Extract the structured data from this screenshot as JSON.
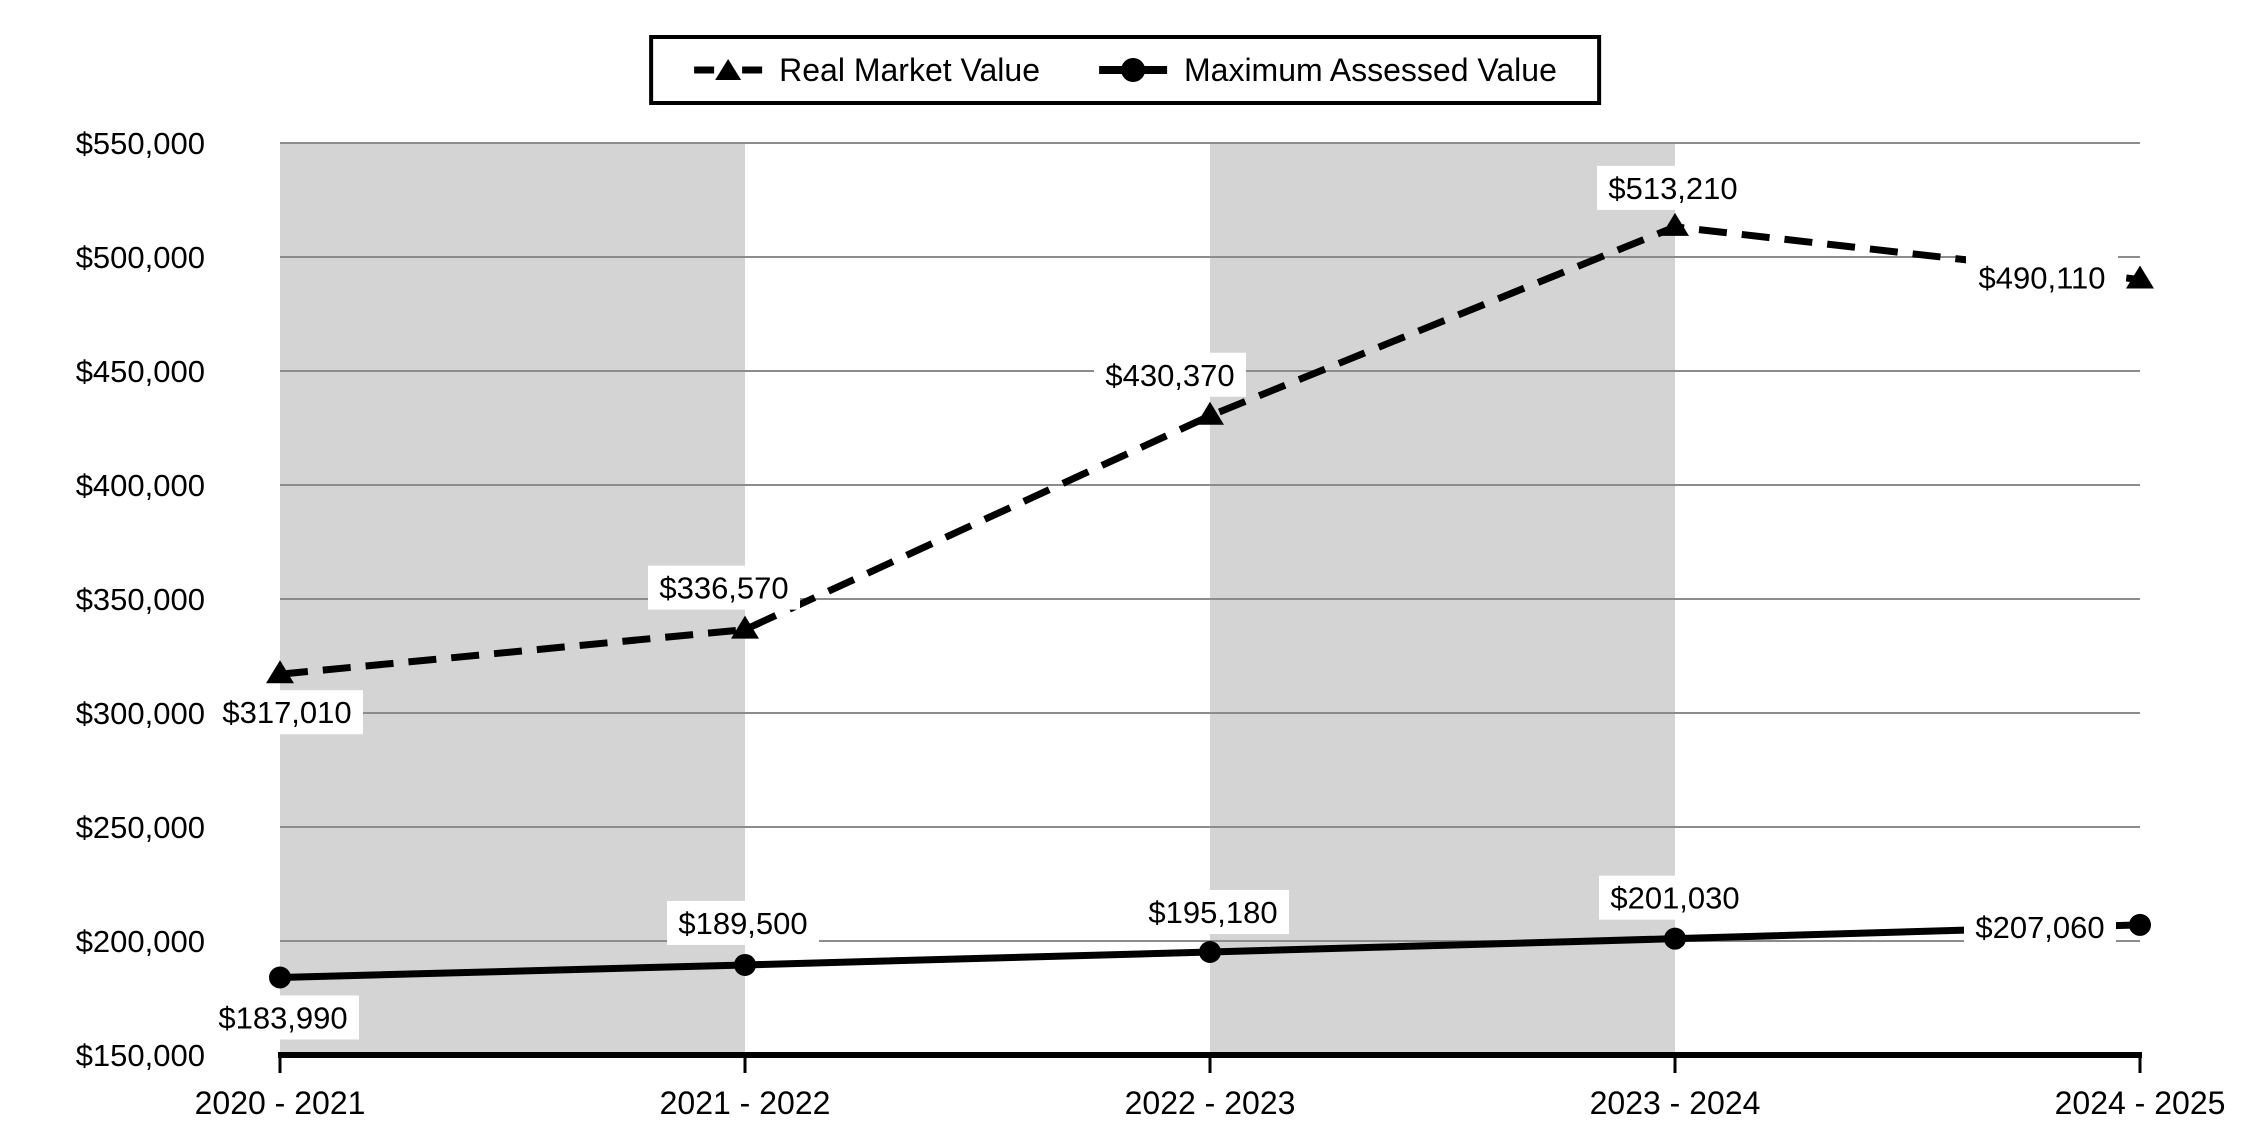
{
  "chart_data": {
    "type": "line",
    "categories": [
      "2020 - 2021",
      "2021 - 2022",
      "2022 - 2023",
      "2023 - 2024",
      "2024 - 2025"
    ],
    "series": [
      {
        "name": "Real Market Value",
        "line_style": "dashed",
        "marker": "triangle",
        "color": "#000000",
        "values": [
          317010,
          336570,
          430370,
          513210,
          490110
        ],
        "data_labels": [
          "$317,010",
          "$336,570",
          "$430,370",
          "$513,210",
          "$490,110"
        ],
        "label_placements": [
          [
            7,
            38
          ],
          [
            -21,
            -42
          ],
          [
            -40,
            -41
          ],
          [
            -2,
            -39
          ],
          [
            -98,
            -2
          ]
        ]
      },
      {
        "name": "Maximum Assessed Value",
        "line_style": "solid",
        "marker": "circle",
        "color": "#000000",
        "values": [
          183990,
          189500,
          195180,
          201030,
          207060
        ],
        "data_labels": [
          "$183,990",
          "$189,500",
          "$195,180",
          "$201,030",
          "$207,060"
        ],
        "label_placements": [
          [
            3,
            40
          ],
          [
            -2,
            -42
          ],
          [
            3,
            -40
          ],
          [
            0,
            -41
          ],
          [
            -100,
            2
          ]
        ]
      }
    ],
    "y_axis": {
      "min": 150000,
      "max": 550000,
      "step": 50000,
      "tick_labels": [
        "$150,000",
        "$200,000",
        "$250,000",
        "$300,000",
        "$350,000",
        "$400,000",
        "$450,000",
        "$500,000",
        "$550,000"
      ]
    },
    "x_axis": {
      "tick_labels": [
        "2020 - 2021",
        "2021 - 2022",
        "2022 - 2023",
        "2023 - 2024",
        "2024 - 2025"
      ]
    },
    "grid": true,
    "gridline_color": "#8c8c8c",
    "plot_band_columns": [
      0,
      2
    ],
    "plot_band_color": "#d4d4d4",
    "axis_color": "#000000",
    "data_label_background": "#ffffff",
    "text_color": "#000000",
    "legend_position": "top-center",
    "legend_border_color": "#000000"
  }
}
